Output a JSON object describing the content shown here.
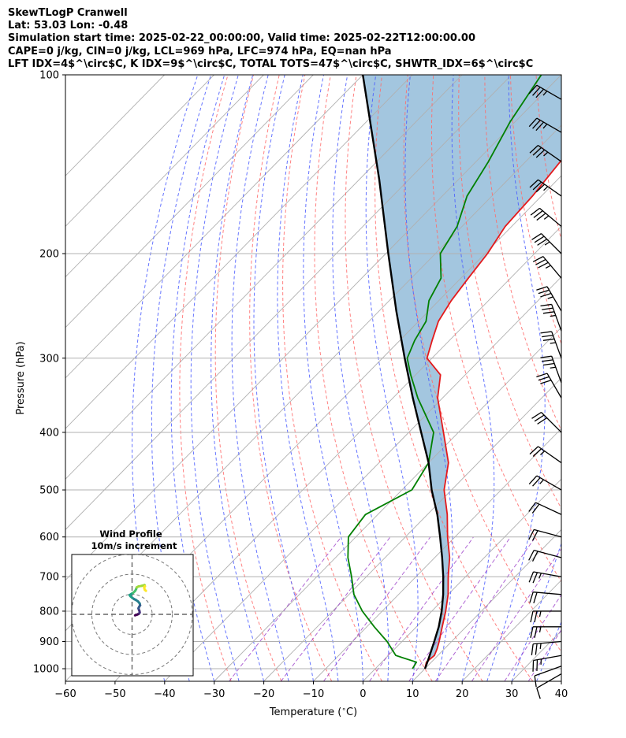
{
  "header": {
    "line1": "SkewTLogP Cranwell",
    "line2": "Lat: 53.03   Lon: -0.48",
    "line3": "Simulation start time: 2025-02-22_00:00:00, Valid time: 2025-02-22T12:00:00.00",
    "line4": "CAPE=0 j/kg, CIN=0 j/kg, LCL=969 hPa, LFC=974 hPa, EQ=nan hPa",
    "line5": "LFT IDX=4$^\\circ$C, K IDX=9$^\\circ$C, TOTAL TOTS=47$^\\circ$C, SHWTR_IDX=6$^\\circ$C"
  },
  "chart_data": {
    "type": "line",
    "xlabel": "Temperature ($^\\circ$C)",
    "ylabel": "Pressure (hPa)",
    "xlim": [
      -60,
      40
    ],
    "ylim": [
      1050,
      100
    ],
    "y_scale": "log",
    "grid": true,
    "x_ticks": [
      -60,
      -50,
      -40,
      -30,
      -20,
      -10,
      0,
      10,
      20,
      30,
      40
    ],
    "y_ticks": [
      1000,
      900,
      800,
      700,
      600,
      500,
      400,
      300,
      200,
      100
    ],
    "colors": {
      "temperature": "#e41a1c",
      "dewpoint": "#008000",
      "parcel": "#000000",
      "shade": "#a3c6df",
      "dry_adiabat": "#ff6b6b",
      "moist_adiabat": "#4a5cff",
      "mixing_ratio": "#9b3fc9",
      "isotherm": "#b0b0b0"
    },
    "series": [
      {
        "key": "temperature",
        "pressure": [
          1000,
          975,
          950,
          925,
          900,
          850,
          800,
          750,
          700,
          650,
          600,
          550,
          500,
          450,
          400,
          350,
          320,
          300,
          280,
          260,
          240,
          220,
          200,
          180,
          160,
          140,
          130,
          120,
          110,
          100
        ],
        "temp": [
          10,
          9,
          9.3,
          8.5,
          7.5,
          5.2,
          2.8,
          0,
          -3.5,
          -7,
          -11.5,
          -16,
          -21.5,
          -26,
          -33,
          -41,
          -45,
          -51,
          -53.5,
          -56,
          -57.5,
          -58.5,
          -59.5,
          -61.3,
          -61.8,
          -63,
          -64,
          -65,
          -66.5,
          -70
        ]
      },
      {
        "key": "dewpoint",
        "pressure": [
          1000,
          975,
          950,
          900,
          850,
          800,
          750,
          700,
          650,
          600,
          550,
          500,
          450,
          400,
          350,
          320,
          300,
          280,
          260,
          240,
          220,
          200,
          180,
          160,
          140,
          120,
          100
        ],
        "temp": [
          7.5,
          7,
          1.5,
          -3,
          -8.5,
          -14,
          -19,
          -23,
          -27.5,
          -31.5,
          -32.5,
          -28,
          -30,
          -35,
          -45,
          -51,
          -55,
          -57,
          -58.5,
          -62,
          -64,
          -69,
          -71,
          -75,
          -77.5,
          -81,
          -84
        ]
      },
      {
        "key": "parcel",
        "pressure": [
          1000,
          969,
          900,
          850,
          800,
          750,
          700,
          650,
          600,
          550,
          500,
          450,
          400,
          350,
          300,
          250,
          200,
          150,
          100
        ],
        "temp": [
          10,
          9,
          6.5,
          4.5,
          2,
          -1,
          -4.5,
          -8.5,
          -13,
          -18,
          -24,
          -30,
          -37.5,
          -46,
          -55.5,
          -66.5,
          -79.5,
          -96,
          -120
        ]
      }
    ],
    "wind_barbs": [
      {
        "p": 1020,
        "direction": 240,
        "speed_kt": 10
      },
      {
        "p": 990,
        "direction": 250,
        "speed_kt": 10
      },
      {
        "p": 950,
        "direction": 260,
        "speed_kt": 25
      },
      {
        "p": 900,
        "direction": 265,
        "speed_kt": 25
      },
      {
        "p": 850,
        "direction": 270,
        "speed_kt": 25
      },
      {
        "p": 800,
        "direction": 270,
        "speed_kt": 25
      },
      {
        "p": 750,
        "direction": 275,
        "speed_kt": 20
      },
      {
        "p": 700,
        "direction": 280,
        "speed_kt": 25
      },
      {
        "p": 650,
        "direction": 285,
        "speed_kt": 20
      },
      {
        "p": 600,
        "direction": 285,
        "speed_kt": 20
      },
      {
        "p": 550,
        "direction": 295,
        "speed_kt": 20
      },
      {
        "p": 500,
        "direction": 300,
        "speed_kt": 25
      },
      {
        "p": 450,
        "direction": 305,
        "speed_kt": 25
      },
      {
        "p": 400,
        "direction": 315,
        "speed_kt": 30
      },
      {
        "p": 350,
        "direction": 330,
        "speed_kt": 30
      },
      {
        "p": 330,
        "direction": 340,
        "speed_kt": 35
      },
      {
        "p": 300,
        "direction": 340,
        "speed_kt": 35
      },
      {
        "p": 270,
        "direction": 340,
        "speed_kt": 35
      },
      {
        "p": 250,
        "direction": 330,
        "speed_kt": 35
      },
      {
        "p": 220,
        "direction": 320,
        "speed_kt": 35
      },
      {
        "p": 200,
        "direction": 315,
        "speed_kt": 35
      },
      {
        "p": 180,
        "direction": 310,
        "speed_kt": 35
      },
      {
        "p": 160,
        "direction": 305,
        "speed_kt": 35
      },
      {
        "p": 140,
        "direction": 305,
        "speed_kt": 35
      },
      {
        "p": 125,
        "direction": 300,
        "speed_kt": 35
      },
      {
        "p": 110,
        "direction": 300,
        "speed_kt": 35
      }
    ],
    "inset": {
      "title": "Wind Profile",
      "subtitle": "10m/s increment",
      "type": "hodograph",
      "u_v_points": [
        [
          1.5,
          -0.5
        ],
        [
          2,
          -0.3
        ],
        [
          2.6,
          -0.1
        ],
        [
          3.2,
          0.2
        ],
        [
          3.6,
          0.5
        ],
        [
          3.8,
          1.0
        ],
        [
          3.7,
          1.6
        ],
        [
          3.4,
          2.3
        ],
        [
          3.2,
          3.0
        ],
        [
          3.5,
          3.7
        ],
        [
          4.0,
          4.5
        ],
        [
          3.8,
          5.4
        ],
        [
          3.0,
          6.4
        ],
        [
          2.0,
          7.1
        ],
        [
          1.0,
          7.6
        ],
        [
          0.0,
          8.3
        ],
        [
          -0.8,
          9.0
        ],
        [
          -1.2,
          9.6
        ],
        [
          -0.3,
          10.2
        ],
        [
          0.6,
          10.8
        ],
        [
          1.5,
          11.6
        ],
        [
          2.0,
          12.5
        ],
        [
          2.3,
          13.4
        ],
        [
          3.2,
          13.9
        ],
        [
          4.8,
          14.2
        ],
        [
          6.2,
          14.6
        ],
        [
          6.4,
          14.0
        ],
        [
          6.0,
          13.3
        ],
        [
          6.3,
          12.3
        ],
        [
          6.9,
          11.7
        ]
      ]
    }
  }
}
